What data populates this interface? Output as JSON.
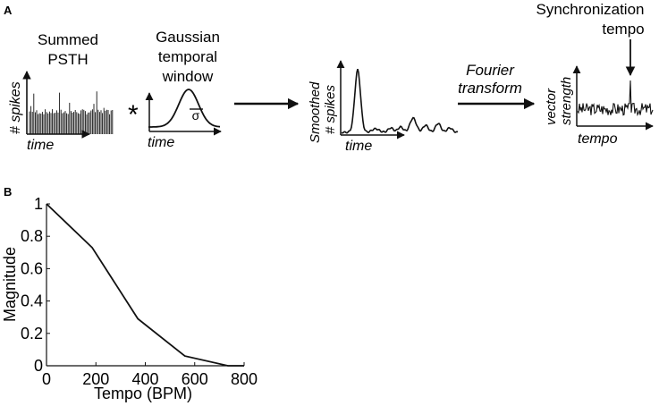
{
  "panels": {
    "a": {
      "letter": "A",
      "psth_title": [
        "Summed",
        "PSTH"
      ],
      "psth_ylabel": "# spikes",
      "psth_xlabel": "time",
      "operator": "*",
      "gaussian_title": [
        "Gaussian",
        "temporal",
        "window"
      ],
      "gaussian_sigma": "σ",
      "gaussian_xlabel": "time",
      "smoothed_ylabel": [
        "Smoothed",
        "# spikes"
      ],
      "smoothed_xlabel": "time",
      "fourier_label": [
        "Fourier",
        "transform"
      ],
      "vs_ylabel": [
        "vector",
        "strength"
      ],
      "vs_xlabel": "tempo",
      "sync_label": [
        "Synchronization",
        "tempo"
      ]
    },
    "b": {
      "letter": "B"
    }
  },
  "chart_data": {
    "type": "line",
    "title": "",
    "xlabel": "Tempo (BPM)",
    "ylabel": "Magnitude",
    "xlim": [
      0,
      800
    ],
    "ylim": [
      0,
      1
    ],
    "xticks": [
      "0",
      "200",
      "400",
      "600",
      "800"
    ],
    "yticks": [
      "0",
      "0.2",
      "0.4",
      "0.6",
      "0.8",
      "1"
    ],
    "grid": false,
    "x": [
      0,
      185,
      370,
      560,
      735,
      800
    ],
    "series": [
      {
        "values": [
          1.0,
          0.73,
          0.29,
          0.06,
          0.0,
          0.0
        ]
      }
    ]
  }
}
